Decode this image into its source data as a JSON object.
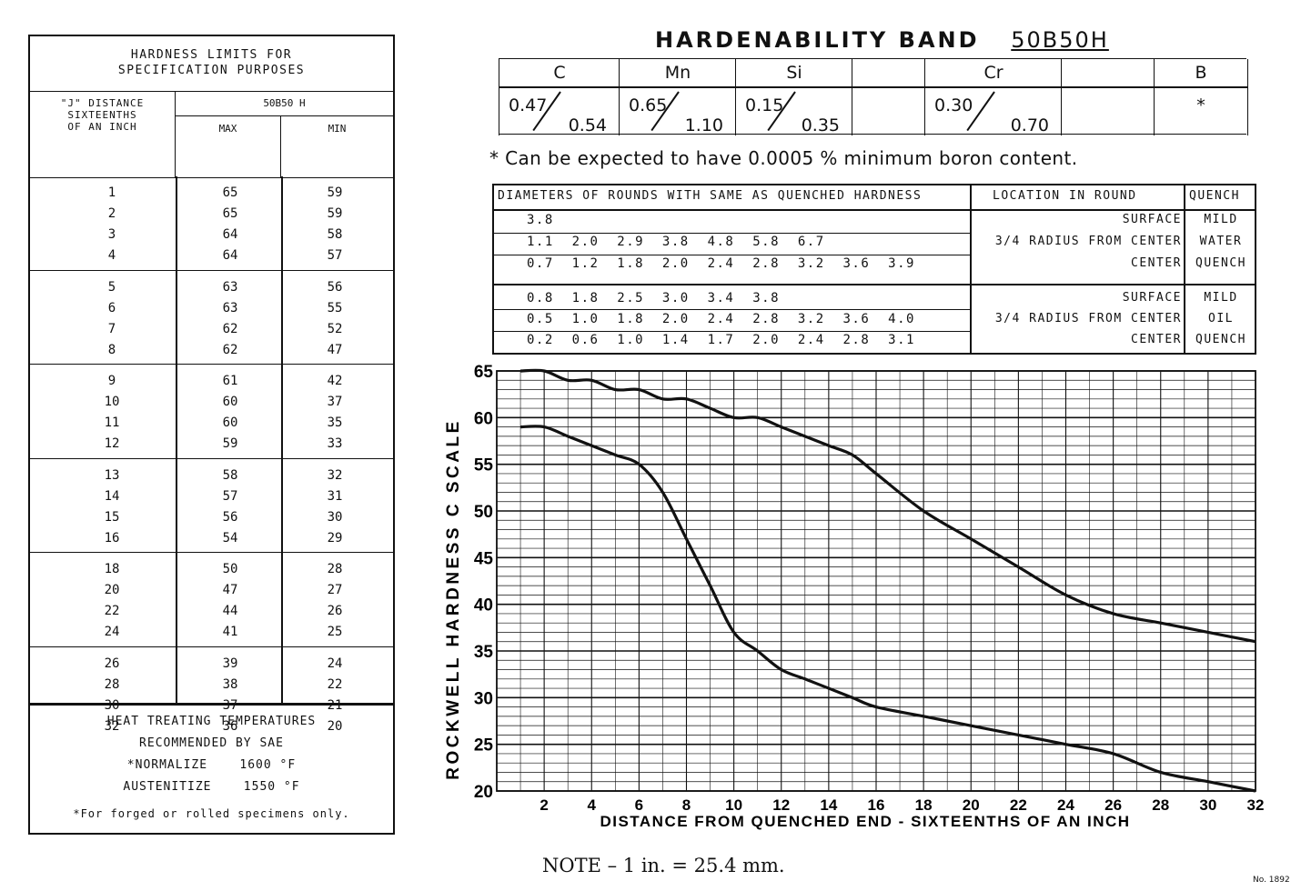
{
  "left_table": {
    "title_line1": "HARDNESS LIMITS FOR",
    "title_line2": "SPECIFICATION PURPOSES",
    "jdist_line1": "\"J\" DISTANCE",
    "jdist_line2": "SIXTEENTHS",
    "jdist_line3": "OF AN INCH",
    "grade": "50B50 H",
    "max_label": "MAX",
    "min_label": "MIN",
    "rows": [
      {
        "j": "1",
        "max": "65",
        "min": "59"
      },
      {
        "j": "2",
        "max": "65",
        "min": "59"
      },
      {
        "j": "3",
        "max": "64",
        "min": "58"
      },
      {
        "j": "4",
        "max": "64",
        "min": "57"
      },
      {
        "j": "5",
        "max": "63",
        "min": "56"
      },
      {
        "j": "6",
        "max": "63",
        "min": "55"
      },
      {
        "j": "7",
        "max": "62",
        "min": "52"
      },
      {
        "j": "8",
        "max": "62",
        "min": "47"
      },
      {
        "j": "9",
        "max": "61",
        "min": "42"
      },
      {
        "j": "10",
        "max": "60",
        "min": "37"
      },
      {
        "j": "11",
        "max": "60",
        "min": "35"
      },
      {
        "j": "12",
        "max": "59",
        "min": "33"
      },
      {
        "j": "13",
        "max": "58",
        "min": "32"
      },
      {
        "j": "14",
        "max": "57",
        "min": "31"
      },
      {
        "j": "15",
        "max": "56",
        "min": "30"
      },
      {
        "j": "16",
        "max": "54",
        "min": "29"
      },
      {
        "j": "18",
        "max": "50",
        "min": "28"
      },
      {
        "j": "20",
        "max": "47",
        "min": "27"
      },
      {
        "j": "22",
        "max": "44",
        "min": "26"
      },
      {
        "j": "24",
        "max": "41",
        "min": "25"
      },
      {
        "j": "26",
        "max": "39",
        "min": "24"
      },
      {
        "j": "28",
        "max": "38",
        "min": "22"
      },
      {
        "j": "30",
        "max": "37",
        "min": "21"
      },
      {
        "j": "32",
        "max": "36",
        "min": "20"
      }
    ],
    "heat": {
      "line1": "HEAT TREATING TEMPERATURES",
      "line2": "RECOMMENDED BY SAE",
      "normalize_label": "*NORMALIZE",
      "normalize_value": "1600 °F",
      "austenitize_label": "AUSTENITIZE",
      "austenitize_value": "1550 °F",
      "footnote": "*For forged or rolled specimens only."
    }
  },
  "header": {
    "title": "HARDENABILITY  BAND",
    "grade": "50B50H"
  },
  "composition": [
    {
      "element": "C",
      "min": "0.47",
      "max": "0.54"
    },
    {
      "element": "Mn",
      "min": "0.65",
      "max": "1.10"
    },
    {
      "element": "Si",
      "min": "0.15",
      "max": "0.35"
    },
    {
      "element": "",
      "min": "",
      "max": ""
    },
    {
      "element": "Cr",
      "min": "0.30",
      "max": "0.70"
    },
    {
      "element": "",
      "min": "",
      "max": ""
    },
    {
      "element": "B",
      "min": "*",
      "max": ""
    }
  ],
  "boron_note": "* Can be expected to have 0.0005 % minimum boron content.",
  "diameters": {
    "header_rounds": "DIAMETERS OF ROUNDS WITH SAME AS QUENCHED HARDNESS",
    "header_location": "LOCATION IN ROUND",
    "header_quench": "QUENCH",
    "water_rows": [
      {
        "values": "3.8",
        "location": "SURFACE",
        "quench": "MILD"
      },
      {
        "values": "1.1  2.0  2.9  3.8  4.8  5.8  6.7",
        "location": "3/4 RADIUS FROM CENTER",
        "quench": "WATER"
      },
      {
        "values": "0.7  1.2  1.8  2.0  2.4  2.8  3.2  3.6  3.9",
        "location": "CENTER",
        "quench": "QUENCH"
      }
    ],
    "oil_rows": [
      {
        "values": "0.8  1.8  2.5  3.0  3.4  3.8",
        "location": "SURFACE",
        "quench": "MILD"
      },
      {
        "values": "0.5  1.0  1.8  2.0  2.4  2.8  3.2  3.6  4.0",
        "location": "3/4 RADIUS FROM CENTER",
        "quench": "OIL"
      },
      {
        "values": "0.2  0.6  1.0  1.4  1.7  2.0  2.4  2.8  3.1",
        "location": "CENTER",
        "quench": "QUENCH"
      }
    ]
  },
  "chart_data": {
    "type": "line",
    "xlabel": "DISTANCE FROM QUENCHED END  - SIXTEENTHS OF AN INCH",
    "ylabel": "ROCKWELL HARDNESS C SCALE",
    "xlim": [
      0,
      32
    ],
    "ylim": [
      20,
      65
    ],
    "x_ticks": [
      2,
      4,
      6,
      8,
      10,
      12,
      14,
      16,
      18,
      20,
      22,
      24,
      26,
      28,
      30,
      32
    ],
    "y_ticks": [
      20,
      25,
      30,
      35,
      40,
      45,
      50,
      55,
      60,
      65
    ],
    "grid": true,
    "series": [
      {
        "x": [
          1,
          2,
          3,
          4,
          5,
          6,
          7,
          8,
          9,
          10,
          11,
          12,
          13,
          14,
          15,
          16,
          18,
          20,
          22,
          24,
          26,
          28,
          30,
          32
        ],
        "values": [
          65,
          65,
          64,
          64,
          63,
          63,
          62,
          62,
          61,
          60,
          60,
          59,
          58,
          57,
          56,
          54,
          50,
          47,
          44,
          41,
          39,
          38,
          37,
          36
        ]
      },
      {
        "x": [
          1,
          2,
          3,
          4,
          5,
          6,
          7,
          8,
          9,
          10,
          11,
          12,
          13,
          14,
          15,
          16,
          18,
          20,
          22,
          24,
          26,
          28,
          30,
          32
        ],
        "values": [
          59,
          59,
          58,
          57,
          56,
          55,
          52,
          47,
          42,
          37,
          35,
          33,
          32,
          31,
          30,
          29,
          28,
          27,
          26,
          25,
          24,
          22,
          21,
          20
        ]
      }
    ]
  },
  "footer": {
    "note": "NOTE – 1 in. = 25.4 mm.",
    "serial": "No. 1892"
  }
}
